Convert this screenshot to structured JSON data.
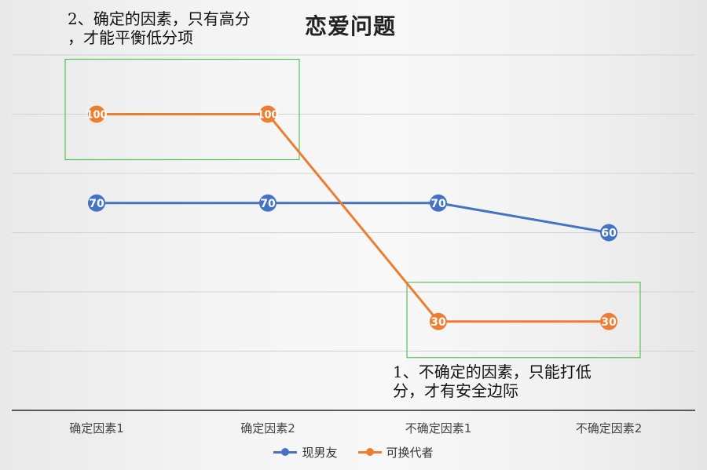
{
  "chart_data": {
    "type": "line",
    "title": "恋爱问题",
    "categories": [
      "确定因素1",
      "确定因素2",
      "不确定因素1",
      "不确定因素2"
    ],
    "series": [
      {
        "name": "现男友",
        "values": [
          70,
          70,
          70,
          60
        ],
        "color": "#4472c4"
      },
      {
        "name": "可换代者",
        "values": [
          100,
          100,
          30,
          30
        ],
        "color": "#ed7d31"
      }
    ],
    "ylim": [
      0,
      120
    ],
    "grid": true,
    "legend": "bottom",
    "data_labels": true,
    "annotations": [
      {
        "text_line1": "2、确定的因素，只有高分",
        "text_line2": "，才能平衡低分项",
        "series": "可换代者",
        "categories": [
          "确定因素1",
          "确定因素2"
        ],
        "box_color": "#55c455"
      },
      {
        "text_line1": "1、不确定的因素，只能打低",
        "text_line2": "分，才有安全边际",
        "series": "可换代者",
        "categories": [
          "不确定因素1",
          "不确定因素2"
        ],
        "box_color": "#55c455"
      }
    ]
  }
}
